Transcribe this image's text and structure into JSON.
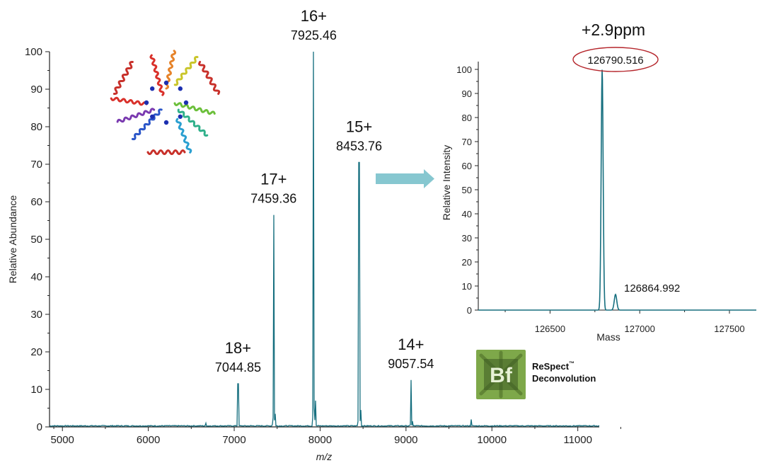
{
  "colors": {
    "trace": "#166f7f",
    "arrow": "#86c7d0",
    "circle": "#b5262c",
    "logo_bg": "#7ea84a"
  },
  "chart_data": [
    {
      "type": "line",
      "title": "",
      "xlabel": "m/z",
      "ylabel": "Relative Abundance",
      "xlim": [
        4850,
        11250
      ],
      "ylim": [
        0,
        100
      ],
      "xticks": [
        5000,
        6000,
        7000,
        8000,
        9000,
        10000,
        11000
      ],
      "yticks": [
        0,
        10,
        20,
        30,
        40,
        50,
        60,
        70,
        80,
        90,
        100
      ],
      "peaks": [
        {
          "mz": 7044.85,
          "intensity": 11.5,
          "charge": "18+",
          "label": "7044.85"
        },
        {
          "mz": 7459.36,
          "intensity": 56.5,
          "charge": "17+",
          "label": "7459.36"
        },
        {
          "mz": 7925.46,
          "intensity": 100,
          "charge": "16+",
          "label": "7925.46"
        },
        {
          "mz": 8453.76,
          "intensity": 70.5,
          "charge": "15+",
          "label": "8453.76"
        },
        {
          "mz": 9057.54,
          "intensity": 12.5,
          "charge": "14+",
          "label": "9057.54"
        }
      ],
      "minor_peaks": [
        {
          "mz": 6670,
          "intensity": 1.0
        },
        {
          "mz": 7475,
          "intensity": 3.5
        },
        {
          "mz": 7945,
          "intensity": 7.0
        },
        {
          "mz": 8475,
          "intensity": 4.5
        },
        {
          "mz": 9075,
          "intensity": 1.5
        },
        {
          "mz": 9760,
          "intensity": 2.0
        }
      ]
    },
    {
      "type": "line",
      "title": "",
      "xlabel": "Mass",
      "ylabel": "Relative Intensity",
      "xlim": [
        126100,
        127650
      ],
      "ylim": [
        0,
        100
      ],
      "xticks": [
        126500,
        127000,
        127500
      ],
      "yticks": [
        0,
        10,
        20,
        30,
        40,
        50,
        60,
        70,
        80,
        90,
        100
      ],
      "annotation": "+2.9ppm",
      "peaks": [
        {
          "mass": 126790.516,
          "intensity": 100,
          "label": "126790.516",
          "circled": true
        },
        {
          "mass": 126864.992,
          "intensity": 6.5,
          "label": "126864.992"
        }
      ]
    }
  ],
  "logo": {
    "mark": "Bf",
    "name": "ReSpect",
    "trademark": "™",
    "subtitle": "Deconvolution"
  }
}
